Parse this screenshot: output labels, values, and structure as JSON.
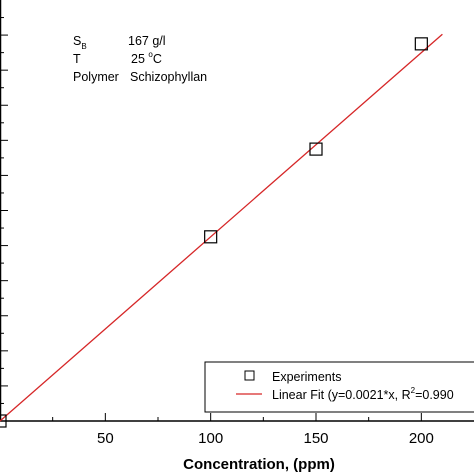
{
  "chart_data": {
    "type": "scatter",
    "xlabel": "Concentration, (ppm)",
    "ylabel": "",
    "xlim": [
      0,
      225
    ],
    "ylim": [
      0,
      0.48
    ],
    "x_ticks": [
      50,
      100,
      150,
      200
    ],
    "x_tick_labels": [
      "50",
      "100",
      "150",
      "200"
    ],
    "grid": false,
    "legend_position": "bottom-right",
    "annotations": [
      {
        "label": "S",
        "sub": "B",
        "value": "167 g/l"
      },
      {
        "label": "T",
        "value": "25 ",
        "sup": "o",
        "unit": "C"
      },
      {
        "label": "Polymer",
        "value": "Schizophyllan"
      }
    ],
    "series": [
      {
        "name": "Experiments",
        "marker": "open-square",
        "color": "#000000",
        "x": [
          0,
          100,
          150,
          200
        ],
        "y": [
          0.0,
          0.21,
          0.31,
          0.43
        ]
      },
      {
        "name": "Linear Fit (y=0.0021*x, R",
        "name_sup": "2",
        "name_tail": "=0.990",
        "style": "line",
        "color": "#d62728",
        "slope": 0.0021,
        "x_range": [
          0,
          210
        ]
      }
    ]
  }
}
